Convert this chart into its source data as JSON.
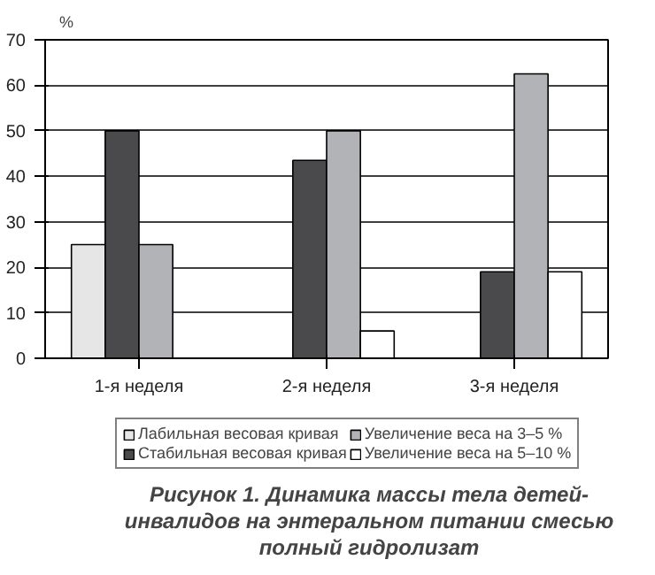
{
  "chart_data": {
    "type": "bar",
    "title": "Рисунок 1. Динамика массы тела детей-инвалидов на энтеральном питании смесью полный гидролизат",
    "ylabel": "%",
    "categories": [
      "1-я неделя",
      "2-я неделя",
      "3-я неделя"
    ],
    "series": [
      {
        "name": "Лабильная весовая кривая",
        "color": "#e6e6e6",
        "values": [
          25,
          null,
          null
        ]
      },
      {
        "name": "Стабильная весовая кривая",
        "color": "#4a4a4c",
        "values": [
          50,
          43.5,
          19
        ]
      },
      {
        "name": "Увеличение веса на 3–5 %",
        "color": "#b2b3b7",
        "values": [
          25,
          50,
          62.5
        ]
      },
      {
        "name": "Увеличение веса на 5–10 %",
        "color": "#ffffff",
        "values": [
          null,
          6,
          19
        ]
      }
    ],
    "ylim": [
      0,
      70
    ],
    "yticks": [
      0,
      10,
      20,
      30,
      40,
      50,
      60,
      70
    ],
    "grid": "y",
    "legend": "bottom"
  }
}
